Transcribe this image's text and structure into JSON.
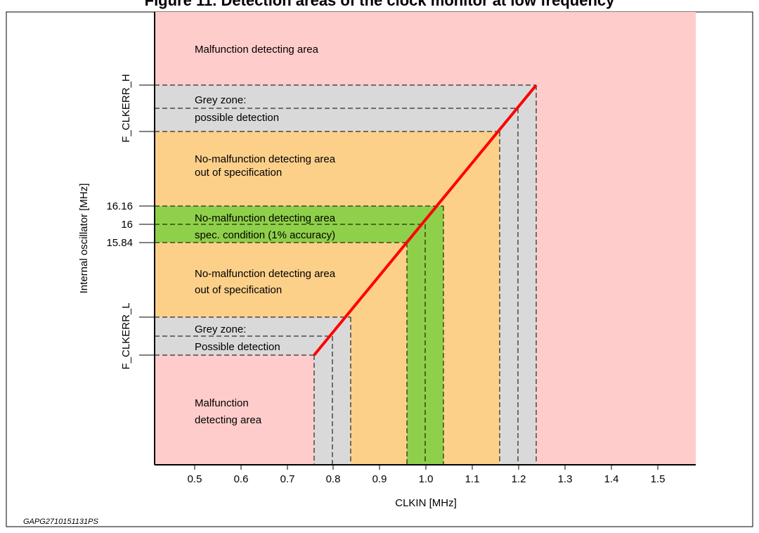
{
  "title": "Figure 11. Detection areas of the clock monitor at low frequency",
  "figure_id": "GAPG2710151131PS",
  "x_axis": {
    "label": "CLKIN [MHz]",
    "ticks": [
      "0.5",
      "0.6",
      "0.7",
      "0.8",
      "0.9",
      "1.0",
      "1.1",
      "1.2",
      "1.3",
      "1.4",
      "1.5"
    ]
  },
  "y_axis": {
    "label": "Internal oscillator [MHz]",
    "labels": {
      "fh": "F_CLKERR_H",
      "fl": "F_CLKERR_L",
      "v1616": "16.16",
      "v16": "16",
      "v1584": "15.84"
    }
  },
  "regions": {
    "malfunction_top": "Malfunction detecting area",
    "grey_top_1": "Grey zone:",
    "grey_top_2": "possible detection",
    "no_malf_upper_1": "No-malfunction detecting area",
    "no_malf_upper_2": "out of specification",
    "spec_1": "No-malfunction detecting area",
    "spec_2": "spec. condition (1% accuracy)",
    "no_malf_lower_1": "No-malfunction detecting area",
    "no_malf_lower_2": "out of specification",
    "grey_bottom_1": "Grey zone:",
    "grey_bottom_2": "Possible detection",
    "malfunction_bottom_1": "Malfunction",
    "malfunction_bottom_2": "detecting area"
  },
  "colors": {
    "malfunction": "#ffcccc",
    "grey": "#d9d9d9",
    "out_of_spec": "#fdd08a",
    "spec": "#8fd04a",
    "line": "#ff0000"
  }
}
